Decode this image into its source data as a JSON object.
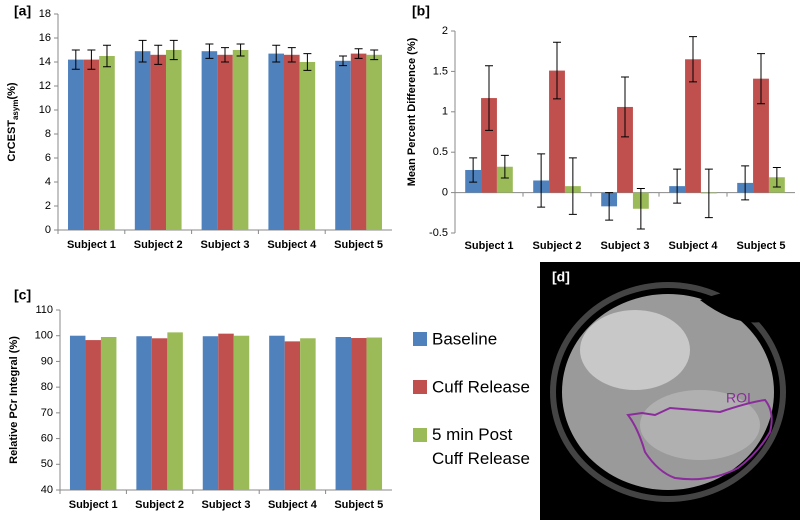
{
  "chart_data": [
    {
      "type": "bar",
      "panel_label": "[a]",
      "ylabel_parts": [
        "CrCEST",
        "asym",
        "(%)"
      ],
      "categories": [
        "Subject 1",
        "Subject 2",
        "Subject 3",
        "Subject 4",
        "Subject 5"
      ],
      "series": [
        {
          "name": "Baseline",
          "color": "#4f81bd",
          "values": [
            14.2,
            14.9,
            14.9,
            14.7,
            14.1
          ],
          "errors": [
            0.8,
            0.9,
            0.6,
            0.7,
            0.4
          ]
        },
        {
          "name": "Cuff Release",
          "color": "#c0504d",
          "values": [
            14.2,
            14.6,
            14.6,
            14.6,
            14.7
          ],
          "errors": [
            0.8,
            0.8,
            0.6,
            0.6,
            0.4
          ]
        },
        {
          "name": "5 min Post Cuff Release",
          "color": "#9bbb59",
          "values": [
            14.5,
            15.0,
            15.0,
            14.0,
            14.6
          ],
          "errors": [
            0.9,
            0.8,
            0.5,
            0.7,
            0.4
          ]
        }
      ],
      "ylim": [
        0,
        18
      ],
      "yticks": [
        0,
        2,
        4,
        6,
        8,
        10,
        12,
        14,
        16,
        18
      ],
      "grid": false,
      "legend": "none"
    },
    {
      "type": "bar",
      "panel_label": "[b]",
      "ylabel": "Mean Percent Difference (%)",
      "categories": [
        "Subject 1",
        "Subject 2",
        "Subject 3",
        "Subject 4",
        "Subject 5"
      ],
      "series": [
        {
          "name": "Baseline",
          "color": "#4f81bd",
          "values": [
            0.28,
            0.15,
            -0.17,
            0.08,
            0.12
          ],
          "errors": [
            0.15,
            0.33,
            0.17,
            0.21,
            0.21
          ]
        },
        {
          "name": "Cuff Release",
          "color": "#c0504d",
          "values": [
            1.17,
            1.51,
            1.06,
            1.65,
            1.41
          ],
          "errors": [
            0.4,
            0.35,
            0.37,
            0.28,
            0.31
          ]
        },
        {
          "name": "5 min Post Cuff Release",
          "color": "#9bbb59",
          "values": [
            0.32,
            0.08,
            -0.2,
            -0.01,
            0.19
          ],
          "errors": [
            0.14,
            0.35,
            0.25,
            0.3,
            0.12
          ]
        }
      ],
      "ylim": [
        -0.5,
        2
      ],
      "yticks": [
        -0.5,
        0,
        0.5,
        1,
        1.5,
        2
      ],
      "grid": false,
      "legend": "none"
    },
    {
      "type": "bar",
      "panel_label": "[c]",
      "ylabel": "Relative PCr Integral (%)",
      "categories": [
        "Subject 1",
        "Subject 2",
        "Subject 3",
        "Subject 4",
        "Subject 5"
      ],
      "series": [
        {
          "name": "Baseline",
          "color": "#4f81bd",
          "values": [
            100,
            99.8,
            99.8,
            100,
            99.5
          ]
        },
        {
          "name": "Cuff Release",
          "color": "#c0504d",
          "values": [
            98.3,
            99,
            100.8,
            97.8,
            99.1
          ]
        },
        {
          "name": "5 min Post Cuff Release",
          "color": "#9bbb59",
          "values": [
            99.5,
            101.3,
            100,
            99,
            99.3
          ]
        }
      ],
      "ylim": [
        40,
        110
      ],
      "yticks": [
        40,
        50,
        60,
        70,
        80,
        90,
        100,
        110
      ],
      "grid": false,
      "legend": "right"
    }
  ],
  "image_panel": {
    "label": "[d]",
    "annotation": "ROI"
  }
}
